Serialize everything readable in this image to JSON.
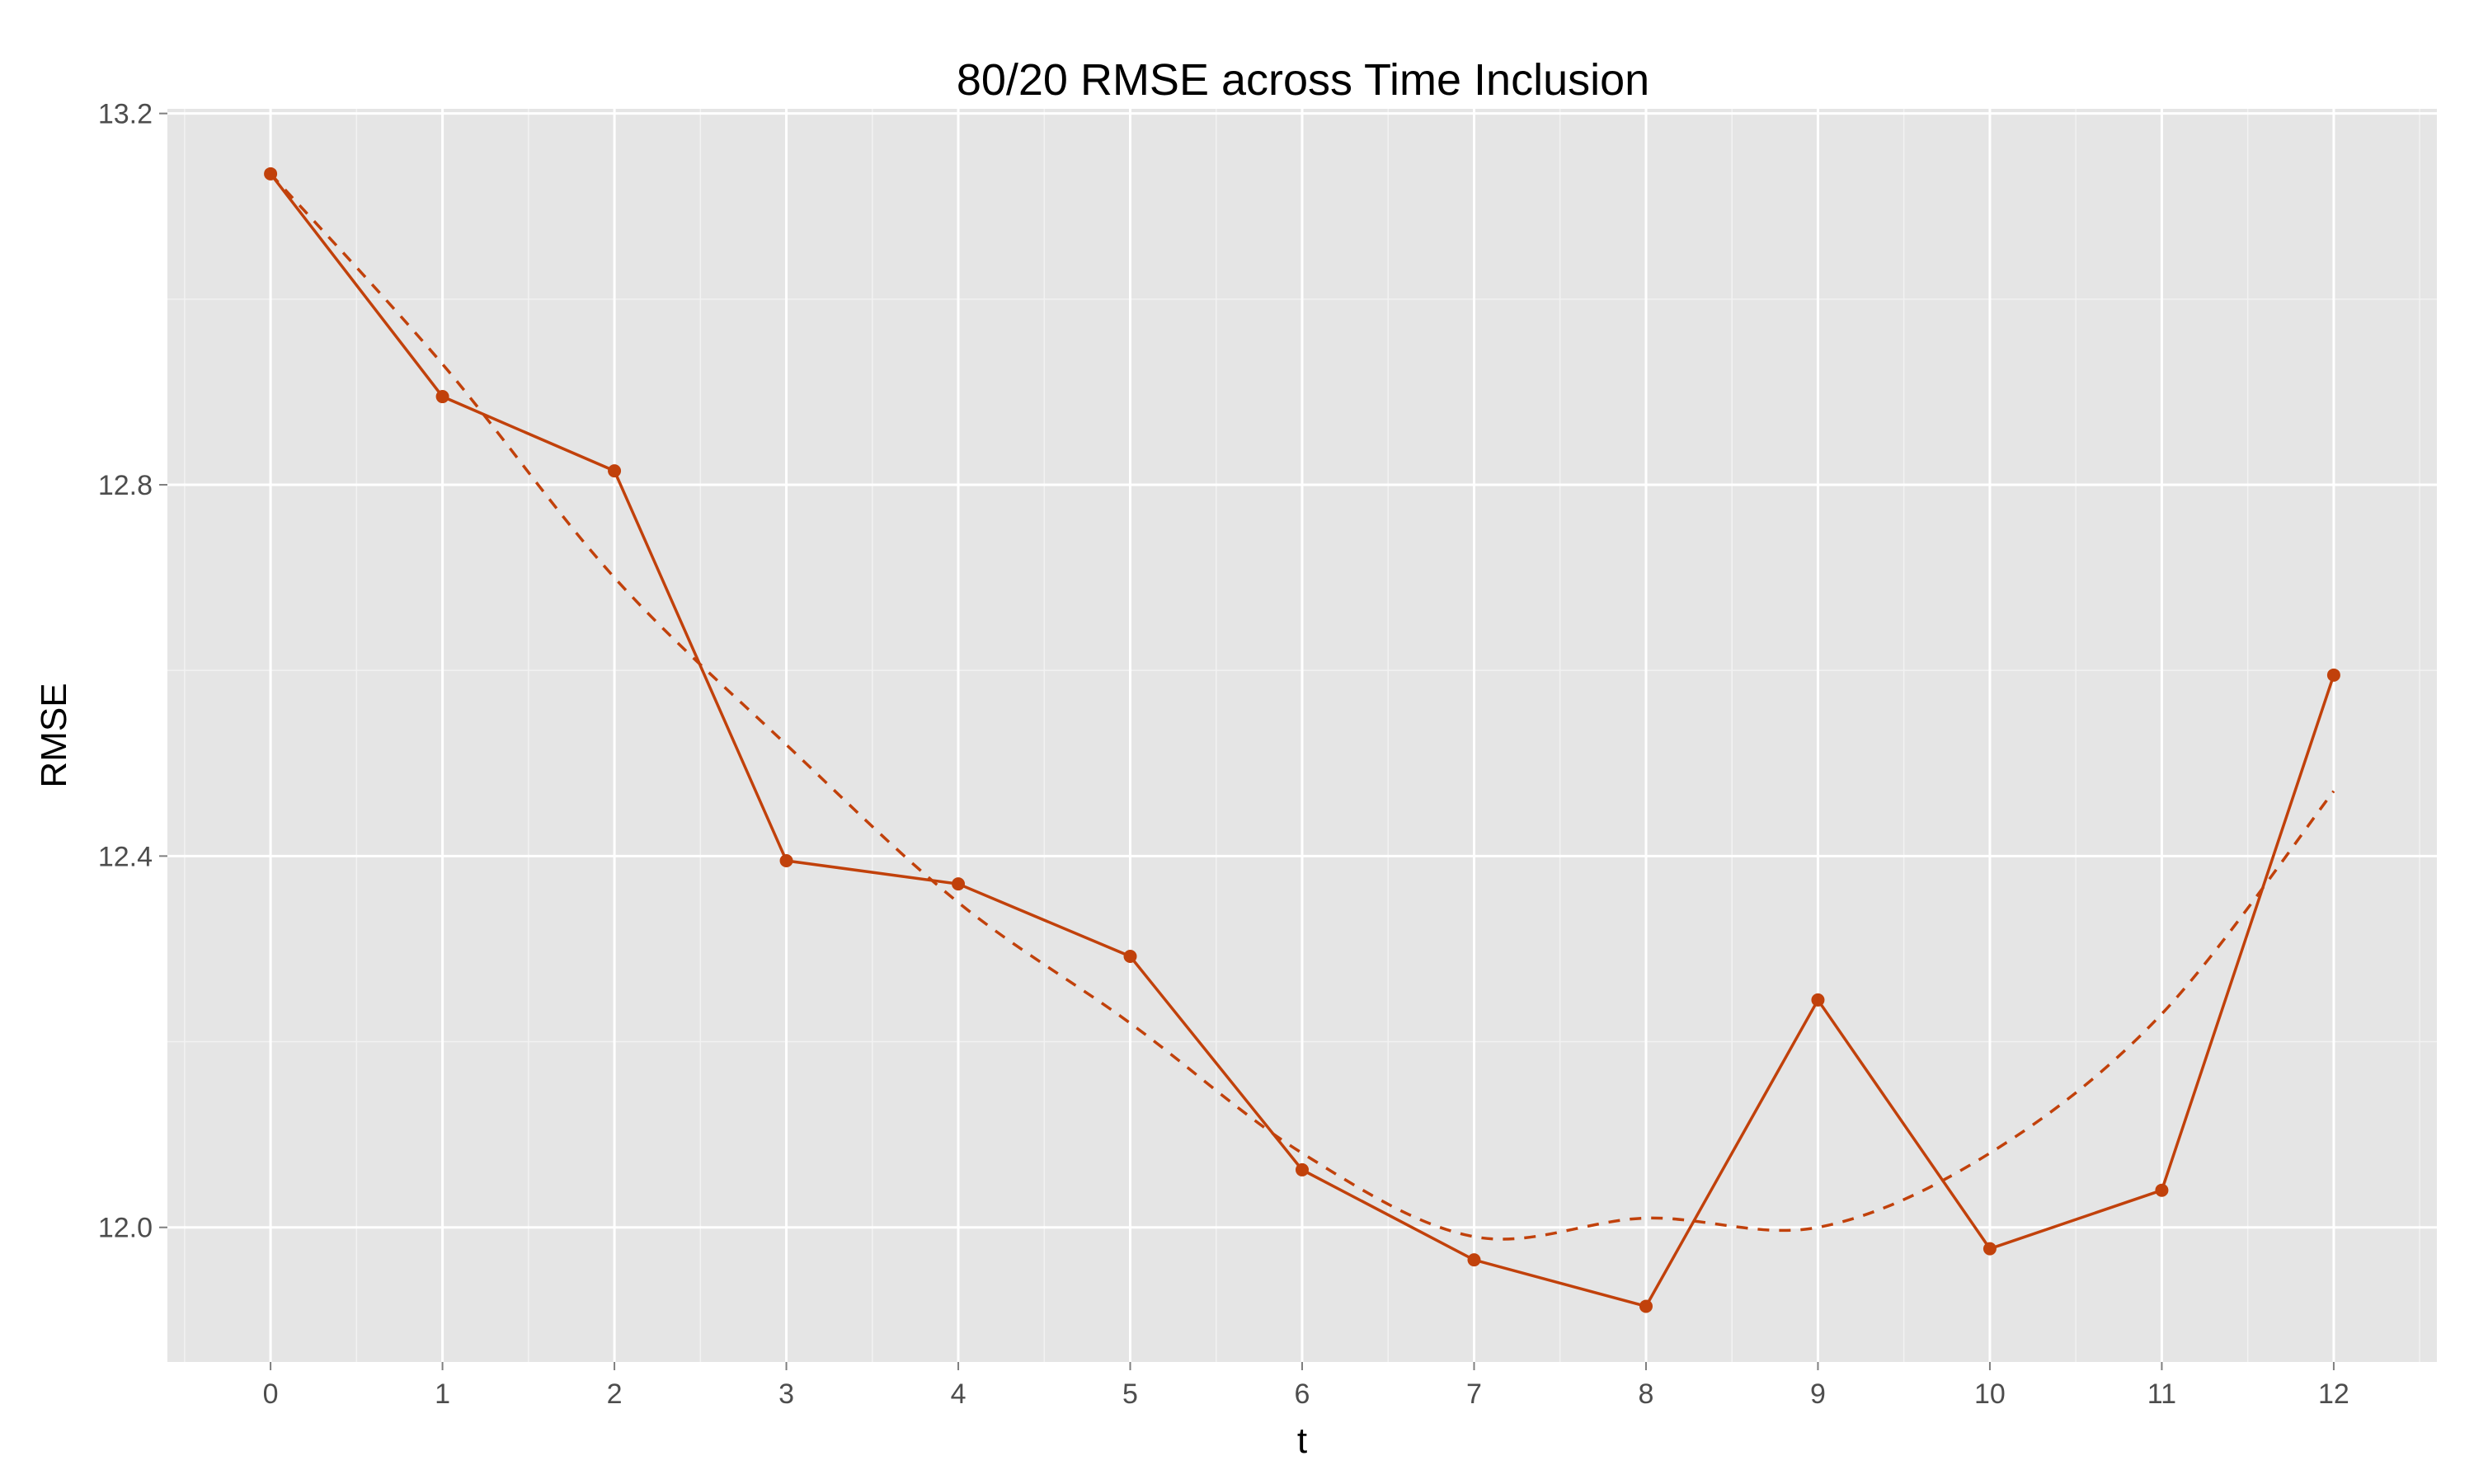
{
  "chart_data": {
    "type": "line",
    "title": "80/20 RMSE across Time Inclusion",
    "xlabel": "t",
    "ylabel": "RMSE",
    "x": [
      0,
      1,
      2,
      3,
      4,
      5,
      6,
      7,
      8,
      9,
      10,
      11,
      12
    ],
    "xticks": [
      "0",
      "1",
      "2",
      "3",
      "4",
      "5",
      "6",
      "7",
      "8",
      "9",
      "10",
      "11",
      "12"
    ],
    "yticks": [
      "12.0",
      "12.4",
      "12.8",
      "13.2"
    ],
    "xlim": [
      -0.6,
      12.6
    ],
    "ylim": [
      11.855,
      13.205
    ],
    "series": [
      {
        "style": "solid-with-points",
        "values": [
          13.135,
          12.895,
          12.815,
          12.395,
          12.37,
          12.292,
          12.062,
          11.965,
          11.915,
          12.245,
          11.977,
          12.04,
          12.595
        ]
      },
      {
        "style": "dashed-smooth",
        "values": [
          13.135,
          12.93,
          12.7,
          12.52,
          12.35,
          12.22,
          12.08,
          11.99,
          12.01,
          12.0,
          12.08,
          12.23,
          12.47
        ]
      }
    ],
    "grid": true,
    "colors": {
      "series": "#c1410b",
      "panel": "#e5e5e5",
      "grid_major": "#ffffff",
      "grid_minor": "#f2f2f2"
    }
  }
}
